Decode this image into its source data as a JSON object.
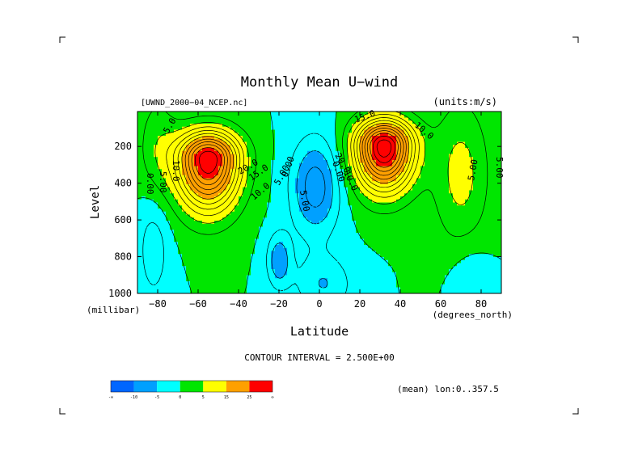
{
  "chart_data": {
    "type": "heatmap",
    "title": "Monthly Mean U−wind",
    "file_label": "[UWND_2000−04_NCEP.nc]",
    "units_label": "(units:m/s)",
    "xlabel": "Latitude",
    "ylabel": "Level",
    "x_unit": "(degrees_north)",
    "y_unit": "(millibar)",
    "xlim": [
      -90,
      90
    ],
    "ylim": [
      1000,
      10
    ],
    "x_ticks": [
      -80,
      -60,
      -40,
      -20,
      0,
      20,
      40,
      60,
      80
    ],
    "x_tick_labels": [
      "−80",
      "−60",
      "−40",
      "−20",
      "0",
      "20",
      "40",
      "60",
      "80"
    ],
    "y_ticks": [
      200,
      400,
      600,
      800,
      1000
    ],
    "y_tick_labels": [
      "200",
      "400",
      "600",
      "800",
      "1000"
    ],
    "contour_interval_text": "CONTOUR INTERVAL = 2.500E+00",
    "mean_text": "(mean) lon:0..357.5",
    "contour_labels": [
      "5.0",
      "5.00",
      "10.0",
      "0.00",
      "20.0",
      "15.0",
      "10.0",
      "5.00",
      "0.00",
      "5.00",
      "15.0",
      "10.0",
      "20.0",
      "0.00",
      "10.0",
      "5.00",
      "5.00"
    ],
    "levels": [
      -10,
      -5,
      0,
      5,
      15,
      25
    ],
    "colorbar": {
      "colors": [
        "#0066ff",
        "#00a0ff",
        "#00ffff",
        "#00e600",
        "#ffff00",
        "#ffa000",
        "#ff0000"
      ],
      "tick_labels": [
        "-∞",
        "-10",
        "-5",
        "0",
        "5",
        "15",
        "25",
        "∞"
      ]
    },
    "jets": [
      {
        "lat": -55,
        "p": 270,
        "peak": 30
      },
      {
        "lat": 32,
        "p": 200,
        "peak": 32
      }
    ]
  }
}
